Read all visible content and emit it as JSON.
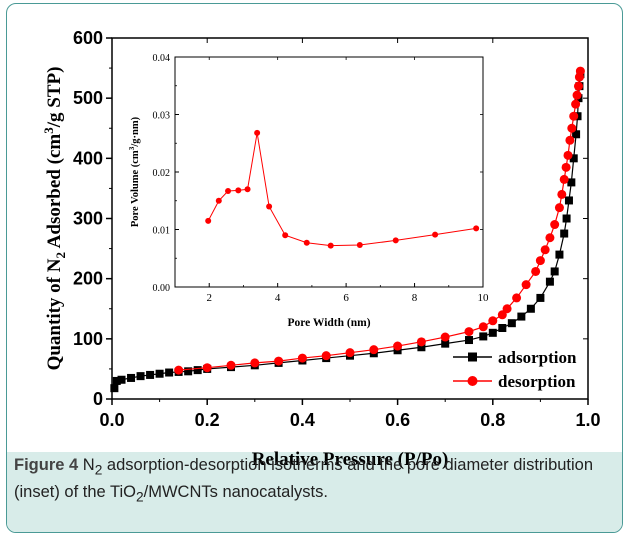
{
  "caption": {
    "label": "Figure 4",
    "pre": " N",
    "sub1": "2",
    "mid": " adsorption-desorption isotherms and the pore diameter distribution (inset) of the TiO",
    "sub2": "2",
    "post": "/MWCNTs nanocatalysts."
  },
  "chart_data": [
    {
      "type": "scatter",
      "title": "",
      "xlabel": "Relative Pressure (P/Po)",
      "ylabel_parts": {
        "pre": "Quantity of N",
        "sub": "2",
        "mid": " Adsorbed (cm",
        "sup": "3",
        "post": "/g STP)"
      },
      "xlim": [
        0.0,
        1.0
      ],
      "ylim": [
        0,
        600
      ],
      "x_ticks": [
        "0.0",
        "0.2",
        "0.4",
        "0.6",
        "0.8",
        "1.0"
      ],
      "y_ticks": [
        "0",
        "100",
        "200",
        "300",
        "400",
        "500",
        "600"
      ],
      "grid": false,
      "legend_position": "bottom-right",
      "series": [
        {
          "name": "adsorption",
          "color": "#000000",
          "marker": "square",
          "points": [
            [
              0.005,
              18
            ],
            [
              0.01,
              30
            ],
            [
              0.02,
              32
            ],
            [
              0.04,
              35
            ],
            [
              0.06,
              38
            ],
            [
              0.08,
              40
            ],
            [
              0.1,
              42
            ],
            [
              0.12,
              44
            ],
            [
              0.14,
              45
            ],
            [
              0.16,
              46
            ],
            [
              0.18,
              48
            ],
            [
              0.2,
              50
            ],
            [
              0.25,
              53
            ],
            [
              0.3,
              56
            ],
            [
              0.35,
              60
            ],
            [
              0.4,
              64
            ],
            [
              0.45,
              68
            ],
            [
              0.5,
              72
            ],
            [
              0.55,
              76
            ],
            [
              0.6,
              81
            ],
            [
              0.65,
              86
            ],
            [
              0.7,
              92
            ],
            [
              0.75,
              98
            ],
            [
              0.78,
              104
            ],
            [
              0.8,
              110
            ],
            [
              0.82,
              118
            ],
            [
              0.84,
              126
            ],
            [
              0.86,
              137
            ],
            [
              0.88,
              150
            ],
            [
              0.9,
              168
            ],
            [
              0.92,
              195
            ],
            [
              0.93,
              212
            ],
            [
              0.94,
              240
            ],
            [
              0.95,
              275
            ],
            [
              0.955,
              300
            ],
            [
              0.96,
              330
            ],
            [
              0.965,
              360
            ],
            [
              0.97,
              400
            ],
            [
              0.975,
              440
            ],
            [
              0.978,
              470
            ],
            [
              0.98,
              500
            ],
            [
              0.982,
              520
            ],
            [
              0.984,
              540
            ]
          ]
        },
        {
          "name": "desorption",
          "color": "#ff0000",
          "marker": "circle",
          "points": [
            [
              0.984,
              545
            ],
            [
              0.982,
              535
            ],
            [
              0.98,
              520
            ],
            [
              0.977,
              505
            ],
            [
              0.974,
              490
            ],
            [
              0.97,
              470
            ],
            [
              0.966,
              450
            ],
            [
              0.962,
              430
            ],
            [
              0.958,
              405
            ],
            [
              0.954,
              385
            ],
            [
              0.95,
              365
            ],
            [
              0.945,
              340
            ],
            [
              0.94,
              318
            ],
            [
              0.93,
              290
            ],
            [
              0.92,
              268
            ],
            [
              0.91,
              248
            ],
            [
              0.9,
              230
            ],
            [
              0.89,
              212
            ],
            [
              0.87,
              190
            ],
            [
              0.85,
              168
            ],
            [
              0.83,
              150
            ],
            [
              0.82,
              140
            ],
            [
              0.8,
              130
            ],
            [
              0.78,
              120
            ],
            [
              0.75,
              112
            ],
            [
              0.7,
              103
            ],
            [
              0.65,
              95
            ],
            [
              0.6,
              88
            ],
            [
              0.55,
              82
            ],
            [
              0.5,
              77
            ],
            [
              0.45,
              72
            ],
            [
              0.4,
              68
            ],
            [
              0.35,
              63
            ],
            [
              0.3,
              60
            ],
            [
              0.25,
              56
            ],
            [
              0.2,
              52
            ],
            [
              0.14,
              48
            ]
          ]
        }
      ]
    },
    {
      "type": "line",
      "title": "",
      "xlabel": "Pore Width (nm)",
      "ylabel_parts": {
        "pre": "Pore Volume (cm",
        "sup": "3",
        "post": "/g·nm)"
      },
      "xlim": [
        1,
        10
      ],
      "ylim": [
        0.0,
        0.04
      ],
      "x_ticks": [
        "2",
        "4",
        "6",
        "8",
        "10"
      ],
      "y_ticks": [
        "0.00",
        "0.01",
        "0.02",
        "0.03",
        "0.04"
      ],
      "grid": false,
      "series": [
        {
          "color": "#ff0000",
          "marker": "circle",
          "points": [
            [
              1.97,
              0.0115
            ],
            [
              2.28,
              0.015
            ],
            [
              2.55,
              0.0167
            ],
            [
              2.85,
              0.0168
            ],
            [
              3.12,
              0.017
            ],
            [
              3.4,
              0.0268
            ],
            [
              3.75,
              0.014
            ],
            [
              4.22,
              0.009
            ],
            [
              4.85,
              0.0077
            ],
            [
              5.55,
              0.0072
            ],
            [
              6.4,
              0.0073
            ],
            [
              7.45,
              0.0081
            ],
            [
              8.6,
              0.0091
            ],
            [
              9.8,
              0.0102
            ]
          ]
        }
      ]
    }
  ]
}
